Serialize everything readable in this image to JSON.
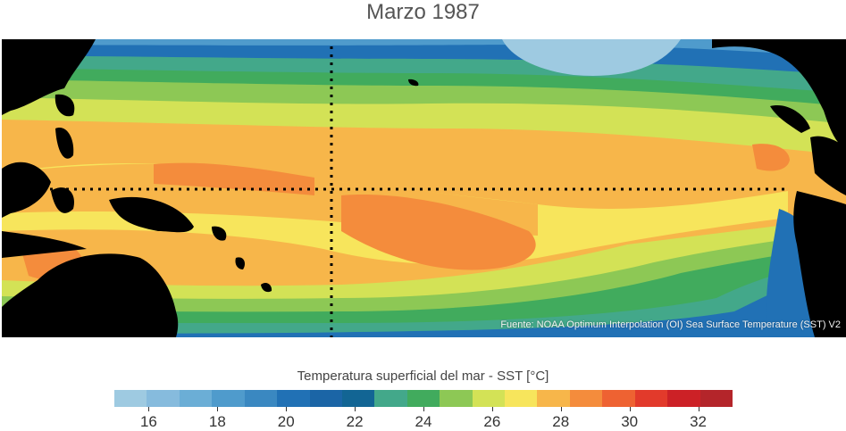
{
  "title": "Marzo 1987",
  "source": "Fuente: NOAA Optimum Interpolation (OI) Sea Surface Temperature (SST) V2",
  "colorbar": {
    "title": "Temperatura superficial del mar - SST  [°C]",
    "min": 15,
    "max": 33,
    "step": 1,
    "tick_labels": [
      "16",
      "18",
      "20",
      "22",
      "24",
      "26",
      "28",
      "30",
      "32"
    ],
    "tick_values": [
      16,
      18,
      20,
      22,
      24,
      26,
      28,
      30,
      32
    ],
    "colors": [
      "#9ecae1",
      "#86bbdd",
      "#6baed6",
      "#4f9bcc",
      "#3a88c1",
      "#2171b5",
      "#1b65a6",
      "#126594",
      "#43a88a",
      "#41ab5d",
      "#8dc855",
      "#d3e256",
      "#f7e55c",
      "#f7b64a",
      "#f48c3c",
      "#ee6232",
      "#e23a2b",
      "#cc2126",
      "#b4252a"
    ]
  },
  "map_colors": {
    "land": "#000000",
    "reference_lines": "#000000"
  }
}
